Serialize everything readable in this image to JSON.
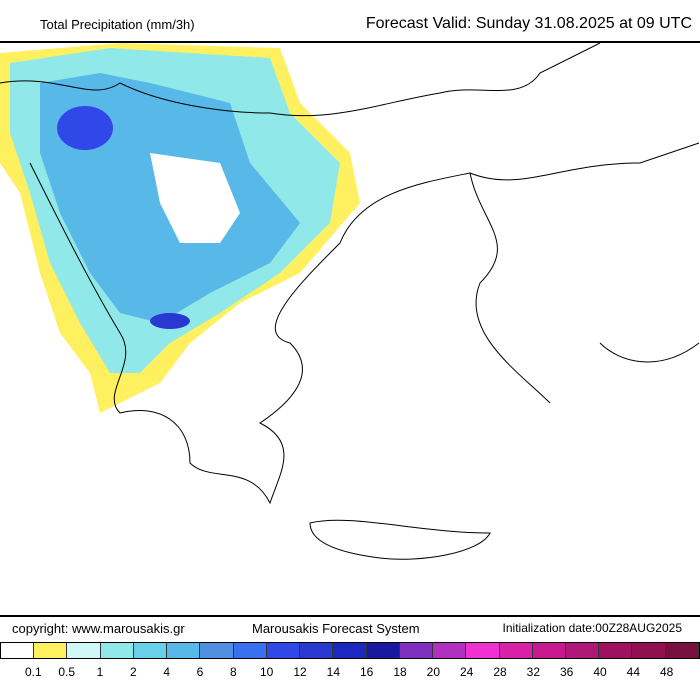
{
  "header": {
    "title": "Total Precipitation (mm/3h)",
    "valid": "Forecast Valid:  Sunday 31.08.2025 at 09 UTC"
  },
  "footer": {
    "copyright": "copyright: www.marousakis.gr",
    "system": "Marousakis Forecast System",
    "init": "Initialization date:00Z28AUG2025"
  },
  "legend": {
    "colors": [
      "#ffffff",
      "#fff060",
      "#d0f8f8",
      "#90e8e8",
      "#68d0e8",
      "#58b8e8",
      "#5090e0",
      "#3870f0",
      "#3048e8",
      "#2838d0",
      "#1c28c0",
      "#1818a0",
      "#8030c0",
      "#b030c0",
      "#f030d0",
      "#d820a8",
      "#c81890",
      "#b01878",
      "#a01060",
      "#901050",
      "#781040"
    ],
    "labels": [
      "0.1",
      "0.5",
      "1",
      "2",
      "4",
      "6",
      "8",
      "10",
      "12",
      "14",
      "16",
      "18",
      "20",
      "24",
      "28",
      "32",
      "36",
      "40",
      "44",
      "48"
    ]
  }
}
